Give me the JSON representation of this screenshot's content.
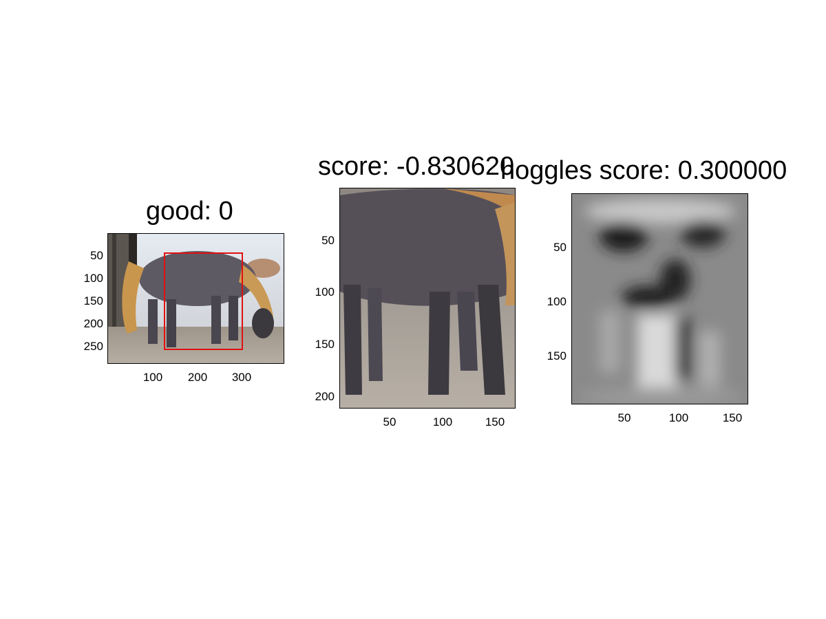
{
  "panels": [
    {
      "title": "good: 0",
      "yticks": [
        "50",
        "100",
        "150",
        "200",
        "250"
      ],
      "xticks": [
        "100",
        "200",
        "300"
      ]
    },
    {
      "title": "score: -0.830620",
      "yticks": [
        "50",
        "100",
        "150",
        "200"
      ],
      "xticks": [
        "50",
        "100",
        "150"
      ]
    },
    {
      "title": "hoggles score: 0.300000",
      "yticks": [
        "50",
        "100",
        "150"
      ],
      "xticks": [
        "50",
        "100",
        "150"
      ]
    }
  ],
  "colors": {
    "bbox": "#e01010",
    "background": "#ffffff"
  }
}
